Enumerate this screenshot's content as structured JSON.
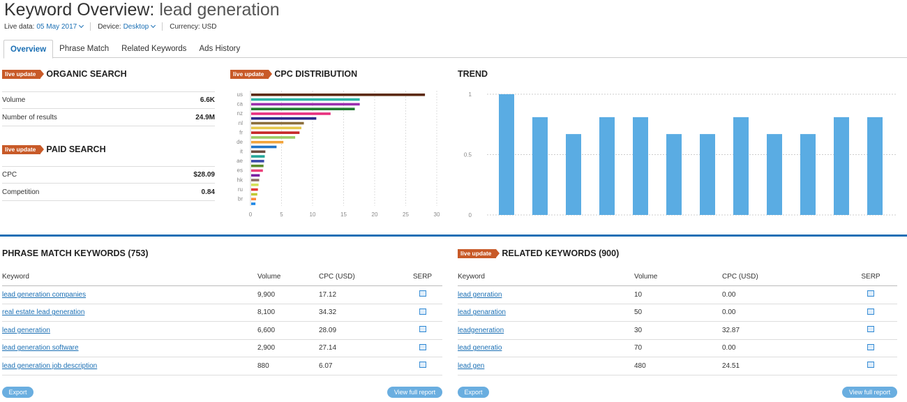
{
  "header": {
    "title_prefix": "Keyword Overview:",
    "title_keyword": "lead generation",
    "live_data_label": "Live data:",
    "live_data_value": "05 May 2017",
    "device_label": "Device:",
    "device_value": "Desktop",
    "currency_label": "Currency: USD"
  },
  "tabs": [
    {
      "label": "Overview"
    },
    {
      "label": "Phrase Match"
    },
    {
      "label": "Related Keywords"
    },
    {
      "label": "Ads History"
    }
  ],
  "badge_text": "live update",
  "organic": {
    "title": "ORGANIC SEARCH",
    "volume_label": "Volume",
    "volume_value": "6.6K",
    "results_label": "Number of results",
    "results_value": "24.9M"
  },
  "paid": {
    "title": "PAID SEARCH",
    "cpc_label": "CPC",
    "cpc_value": "$28.09",
    "competition_label": "Competition",
    "competition_value": "0.84"
  },
  "cpc_title": "CPC DISTRIBUTION",
  "trend_title": "TREND",
  "chart_data": [
    {
      "type": "bar",
      "orientation": "horizontal",
      "categories": [
        "us",
        "",
        "ca",
        "",
        "nz",
        "",
        "nl",
        "",
        "fr",
        "",
        "de",
        "",
        "it",
        "",
        "ae",
        "",
        "es",
        "",
        "hk",
        "",
        "ru",
        "",
        "br",
        ""
      ],
      "values": [
        28.1,
        17.6,
        17.6,
        16.8,
        12.9,
        10.6,
        8.6,
        8.2,
        7.9,
        7.2,
        5.3,
        4.2,
        2.4,
        2.3,
        2.2,
        2.1,
        2.0,
        1.5,
        1.4,
        1.3,
        1.2,
        1.1,
        0.9,
        0.8
      ],
      "colors": [
        "#5c2a0f",
        "#2bb5a6",
        "#9b2fae",
        "#1f7a2e",
        "#e8317f",
        "#2a2a8c",
        "#8a6d3b",
        "#e6c84c",
        "#c62828",
        "#9ccc65",
        "#f2a33a",
        "#1e73c8",
        "#6d4c41",
        "#26a69a",
        "#3949ab",
        "#5b8c2a",
        "#ec407a",
        "#7b1fa2",
        "#8d6e63",
        "#d4e157",
        "#e53935",
        "#c0ca33",
        "#ff8a3d",
        "#1e88e5"
      ],
      "xlim": [
        0,
        30
      ],
      "xticks": [
        "0",
        "5",
        "10",
        "15",
        "20",
        "25",
        "30"
      ]
    },
    {
      "type": "bar",
      "values": [
        1,
        0.81,
        0.67,
        0.81,
        0.81,
        0.67,
        0.67,
        0.81,
        0.67,
        0.67,
        0.81,
        0.81
      ],
      "ylim": [
        0,
        1
      ],
      "yticks": [
        "0",
        "0.5",
        "1"
      ],
      "color": "#5aace3"
    }
  ],
  "phrase": {
    "title": "PHRASE MATCH KEYWORDS (753)",
    "headers": [
      "Keyword",
      "Volume",
      "CPC (USD)",
      "SERP"
    ],
    "rows": [
      {
        "keyword": "lead generation companies",
        "volume": "9,900",
        "cpc": "17.12"
      },
      {
        "keyword": "real estate lead generation",
        "volume": "8,100",
        "cpc": "34.32"
      },
      {
        "keyword": "lead generation",
        "volume": "6,600",
        "cpc": "28.09"
      },
      {
        "keyword": "lead generation software",
        "volume": "2,900",
        "cpc": "27.14"
      },
      {
        "keyword": "lead generation job description",
        "volume": "880",
        "cpc": "6.07"
      }
    ],
    "export_label": "Export",
    "report_label": "View full report"
  },
  "related": {
    "title": "RELATED KEYWORDS (900)",
    "headers": [
      "Keyword",
      "Volume",
      "CPC (USD)",
      "SERP"
    ],
    "rows": [
      {
        "keyword": "lead genration",
        "volume": "10",
        "cpc": "0.00"
      },
      {
        "keyword": "lead genaration",
        "volume": "50",
        "cpc": "0.00"
      },
      {
        "keyword": "leadgeneration",
        "volume": "30",
        "cpc": "32.87"
      },
      {
        "keyword": "lead generatio",
        "volume": "70",
        "cpc": "0.00"
      },
      {
        "keyword": "lead gen",
        "volume": "480",
        "cpc": "24.51"
      }
    ],
    "export_label": "Export",
    "report_label": "View full report"
  }
}
